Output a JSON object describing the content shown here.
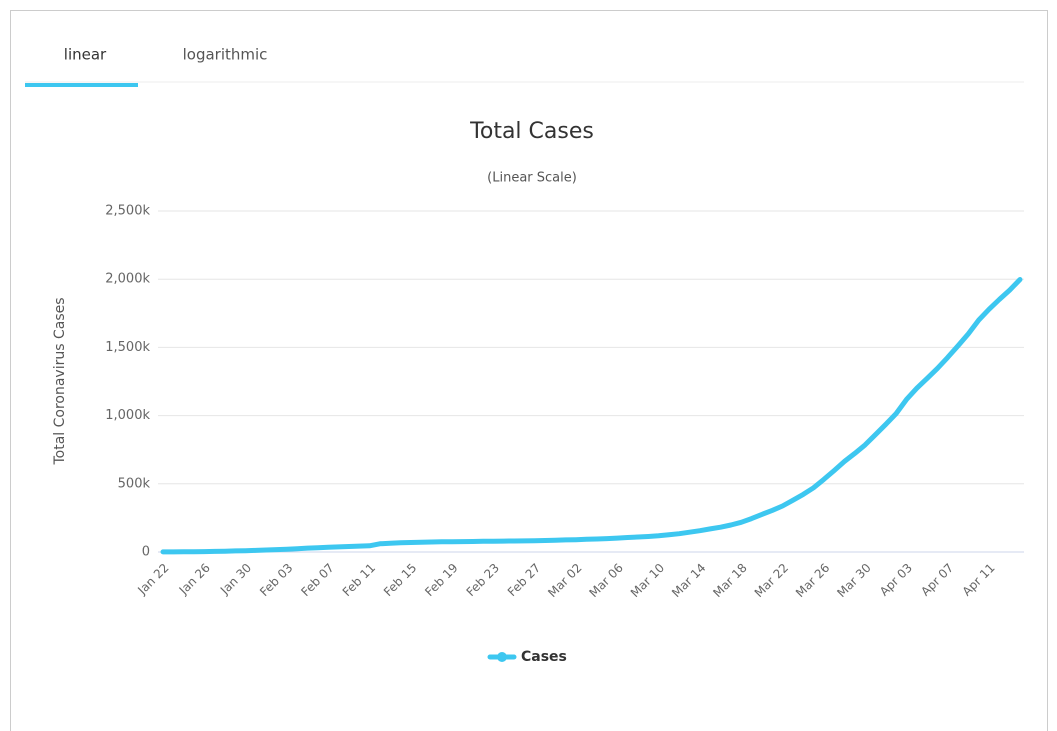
{
  "tabs": [
    "linear",
    "logarithmic"
  ],
  "chart_data": {
    "type": "line",
    "title": "Total Cases",
    "subtitle": "(Linear Scale)",
    "y_label": "Total Coronavirus Cases",
    "categories": [
      "Jan 22",
      null,
      null,
      null,
      "Jan 26",
      null,
      null,
      null,
      "Jan 30",
      null,
      null,
      null,
      "Feb 03",
      null,
      null,
      null,
      "Feb 07",
      null,
      null,
      null,
      "Feb 11",
      null,
      null,
      null,
      "Feb 15",
      null,
      null,
      null,
      "Feb 19",
      null,
      null,
      null,
      "Feb 23",
      null,
      null,
      null,
      "Feb 27",
      null,
      null,
      null,
      "Mar 02",
      null,
      null,
      null,
      "Mar 06",
      null,
      null,
      null,
      "Mar 10",
      null,
      null,
      null,
      "Mar 14",
      null,
      null,
      null,
      "Mar 18",
      null,
      null,
      null,
      "Mar 22",
      null,
      null,
      null,
      "Mar 26",
      null,
      null,
      null,
      "Mar 30",
      null,
      null,
      null,
      "Apr 03",
      null,
      null,
      null,
      "Apr 07",
      null,
      null,
      null,
      "Apr 11",
      null,
      null,
      null
    ],
    "series": [
      {
        "name": "Cases",
        "color": "#3dc7f0",
        "values": [
          0.58,
          0.85,
          1.3,
          2.0,
          2.8,
          4.6,
          6.1,
          7.8,
          9.8,
          11.9,
          14.6,
          17.4,
          20.6,
          24.5,
          28.3,
          31.5,
          34.9,
          37.6,
          40.6,
          43.1,
          45.2,
          60.4,
          64.2,
          67.1,
          69.3,
          71.3,
          73.3,
          75.2,
          75.7,
          76.2,
          77.2,
          78.6,
          79.0,
          79.6,
          80.4,
          81.4,
          82.7,
          84.1,
          86.0,
          88.4,
          90.4,
          92.9,
          95.3,
          98.1,
          102,
          106,
          110,
          114,
          119,
          126,
          134,
          145,
          156,
          169,
          182,
          198,
          218,
          245,
          276,
          305,
          337,
          379,
          422,
          471,
          532,
          597,
          664,
          723,
          785,
          860,
          936,
          1015,
          1117,
          1200,
          1273,
          1346,
          1427,
          1512,
          1600,
          1700,
          1779,
          1851,
          1920,
          1998
        ]
      }
    ],
    "ylim": [
      0,
      2500
    ],
    "yticks": [
      0,
      {
        "value": 500,
        "label": "500k"
      },
      {
        "value": 1000,
        "label": "1,000k"
      },
      {
        "value": 1500,
        "label": "1,500k"
      },
      {
        "value": 2000,
        "label": "2,000k"
      },
      {
        "value": 2500,
        "label": "2,500k"
      }
    ],
    "grid": true,
    "legend": "bottom"
  }
}
